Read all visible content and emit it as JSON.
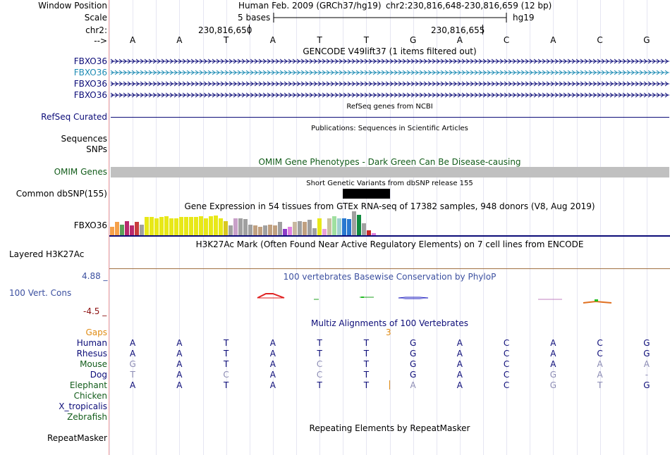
{
  "header": {
    "window_position_label": "Window Position",
    "scale_label": "Scale",
    "chrom_label": "chr2:",
    "arrow_label": "-->",
    "assembly": "Human Feb. 2009 (GRCh37/hg19)",
    "position": "chr2:230,816,648-230,816,659 (12 bp)",
    "scale_text": "5 bases",
    "scale_db": "hg19",
    "coord_left": "230,816,650",
    "coord_right": "230,816,655"
  },
  "bases": [
    "A",
    "A",
    "T",
    "A",
    "T",
    "T",
    "G",
    "A",
    "C",
    "A",
    "C",
    "G"
  ],
  "tracks": {
    "gencode": {
      "title": "GENCODE V49lift37 (1 items filtered out)",
      "items": [
        {
          "label": "FBXO36",
          "color": "#0c0c78"
        },
        {
          "label": "FBXO36",
          "color": "#1e8cb4"
        },
        {
          "label": "FBXO36",
          "color": "#0c0c78"
        },
        {
          "label": "FBXO36",
          "color": "#0c0c78"
        }
      ]
    },
    "refseq": {
      "title": "RefSeq genes from NCBI",
      "label": "RefSeq Curated",
      "color": "#0c0c78"
    },
    "publications": {
      "title": "Publications: Sequences in Scientific Articles",
      "labels": [
        "Sequences",
        "SNPs"
      ]
    },
    "omim": {
      "title": "OMIM Gene Phenotypes - Dark Green Can Be Disease-causing",
      "label": "OMIM Genes",
      "color": "#125c1a",
      "bar_color": "#c0c0c0"
    },
    "dbsnp": {
      "title": "Short Genetic Variants from dbSNP release 155",
      "label": "Common dbSNP(155)"
    },
    "gtex": {
      "title": "Gene Expression in 54 tissues from GTEx RNA-seq of 17382 samples, 948 donors (V8, Aug 2019)",
      "label": "FBXO36",
      "bars": [
        {
          "color": "#f5a04a",
          "value": 0.35
        },
        {
          "color": "#f5a04a",
          "value": 0.55
        },
        {
          "color": "#5aa05a",
          "value": 0.45
        },
        {
          "color": "#b8286e",
          "value": 0.6
        },
        {
          "color": "#b8286e",
          "value": 0.4
        },
        {
          "color": "#c83c3c",
          "value": 0.55
        },
        {
          "color": "#a0a0a0",
          "value": 0.45
        },
        {
          "color": "#e8e818",
          "value": 0.75
        },
        {
          "color": "#e8e818",
          "value": 0.75
        },
        {
          "color": "#e8e818",
          "value": 0.72
        },
        {
          "color": "#e8e818",
          "value": 0.75
        },
        {
          "color": "#e8e818",
          "value": 0.8
        },
        {
          "color": "#e8e818",
          "value": 0.72
        },
        {
          "color": "#e8e818",
          "value": 0.72
        },
        {
          "color": "#e8e818",
          "value": 0.75
        },
        {
          "color": "#e8e818",
          "value": 0.75
        },
        {
          "color": "#e8e818",
          "value": 0.75
        },
        {
          "color": "#e8e818",
          "value": 0.75
        },
        {
          "color": "#e8e818",
          "value": 0.8
        },
        {
          "color": "#e8e818",
          "value": 0.72
        },
        {
          "color": "#e8e818",
          "value": 0.78
        },
        {
          "color": "#e8e818",
          "value": 0.82
        },
        {
          "color": "#e8e818",
          "value": 0.72
        },
        {
          "color": "#d8c820",
          "value": 0.6
        },
        {
          "color": "#a0a0a0",
          "value": 0.4
        },
        {
          "color": "#c8a0c8",
          "value": 0.7
        },
        {
          "color": "#a0a0a0",
          "value": 0.72
        },
        {
          "color": "#a0a0a0",
          "value": 0.68
        },
        {
          "color": "#a0a0a0",
          "value": 0.45
        },
        {
          "color": "#c0a080",
          "value": 0.4
        },
        {
          "color": "#c0a080",
          "value": 0.35
        },
        {
          "color": "#a0a0a0",
          "value": 0.4
        },
        {
          "color": "#c0a080",
          "value": 0.45
        },
        {
          "color": "#c0a080",
          "value": 0.4
        },
        {
          "color": "#a0a0a0",
          "value": 0.55
        },
        {
          "color": "#8c3cc8",
          "value": 0.25
        },
        {
          "color": "#e080e0",
          "value": 0.35
        },
        {
          "color": "#c8b8a0",
          "value": 0.55
        },
        {
          "color": "#a0a0a0",
          "value": 0.6
        },
        {
          "color": "#c0a080",
          "value": 0.55
        },
        {
          "color": "#a0a0a0",
          "value": 0.65
        },
        {
          "color": "#a0a0a0",
          "value": 0.3
        },
        {
          "color": "#e8e818",
          "value": 0.72
        },
        {
          "color": "#e8a0d8",
          "value": 0.25
        },
        {
          "color": "#c8c0a0",
          "value": 0.72
        },
        {
          "color": "#a0e0a0",
          "value": 0.8
        },
        {
          "color": "#a0d0d0",
          "value": 0.72
        },
        {
          "color": "#2878d0",
          "value": 0.72
        },
        {
          "color": "#2878d0",
          "value": 0.68
        },
        {
          "color": "#a0a0a0",
          "value": 1.0
        },
        {
          "color": "#108c40",
          "value": 0.85
        },
        {
          "color": "#a0a0a0",
          "value": 0.5
        },
        {
          "color": "#c82828",
          "value": 0.2
        },
        {
          "color": "#e080e0",
          "value": 0.08
        }
      ]
    },
    "h3k27ac": {
      "title": "H3K27Ac Mark (Often Found Near Active Regulatory Elements) on 7 cell lines from ENCODE",
      "label": "Layered H3K27Ac"
    },
    "cons": {
      "title": "100 vertebrates Basewise Conservation by PhyloP",
      "label": "100 Vert. Cons",
      "max_label": "4.88 _",
      "min_label": "-4.5 _",
      "title_color": "#3c50a0"
    },
    "multiz": {
      "title": "Multiz Alignments of 100 Vertebrates",
      "gaps_label": "Gaps",
      "gaps_value": "3",
      "gaps_color": "#e08c14",
      "species": [
        {
          "name": "Human",
          "color": "#0c0c78",
          "bases": [
            "A",
            "A",
            "T",
            "A",
            "T",
            "T",
            "G",
            "A",
            "C",
            "A",
            "C",
            "G"
          ],
          "dim": []
        },
        {
          "name": "Rhesus",
          "color": "#0c0c78",
          "bases": [
            "A",
            "A",
            "T",
            "A",
            "T",
            "T",
            "G",
            "A",
            "C",
            "A",
            "C",
            "G"
          ],
          "dim": []
        },
        {
          "name": "Mouse",
          "color": "#125c1a",
          "bases": [
            "G",
            "A",
            "T",
            "A",
            "C",
            "T",
            "G",
            "A",
            "C",
            "A",
            "A",
            "A"
          ],
          "dim": [
            0,
            4,
            10,
            11
          ]
        },
        {
          "name": "Dog",
          "color": "#0c0c78",
          "bases": [
            "T",
            "A",
            "C",
            "A",
            "C",
            "T",
            "G",
            "A",
            "C",
            "G",
            "A",
            "-"
          ],
          "dim": [
            0,
            2,
            4,
            9,
            10,
            11
          ]
        },
        {
          "name": "Elephant",
          "color": "#125c1a",
          "bases": [
            "A",
            "A",
            "T",
            "A",
            "T",
            "T",
            "A",
            "A",
            "C",
            "G",
            "T",
            "G"
          ],
          "dim": [
            6,
            9,
            10
          ]
        },
        {
          "name": "Chicken",
          "color": "#125c1a",
          "bases": [],
          "dim": []
        },
        {
          "name": "X_tropicalis",
          "color": "#0c0c78",
          "bases": [],
          "dim": []
        },
        {
          "name": "Zebrafish",
          "color": "#125c1a",
          "bases": [],
          "dim": []
        }
      ]
    },
    "repeatmasker": {
      "title": "Repeating Elements by RepeatMasker",
      "label": "RepeatMasker"
    }
  }
}
